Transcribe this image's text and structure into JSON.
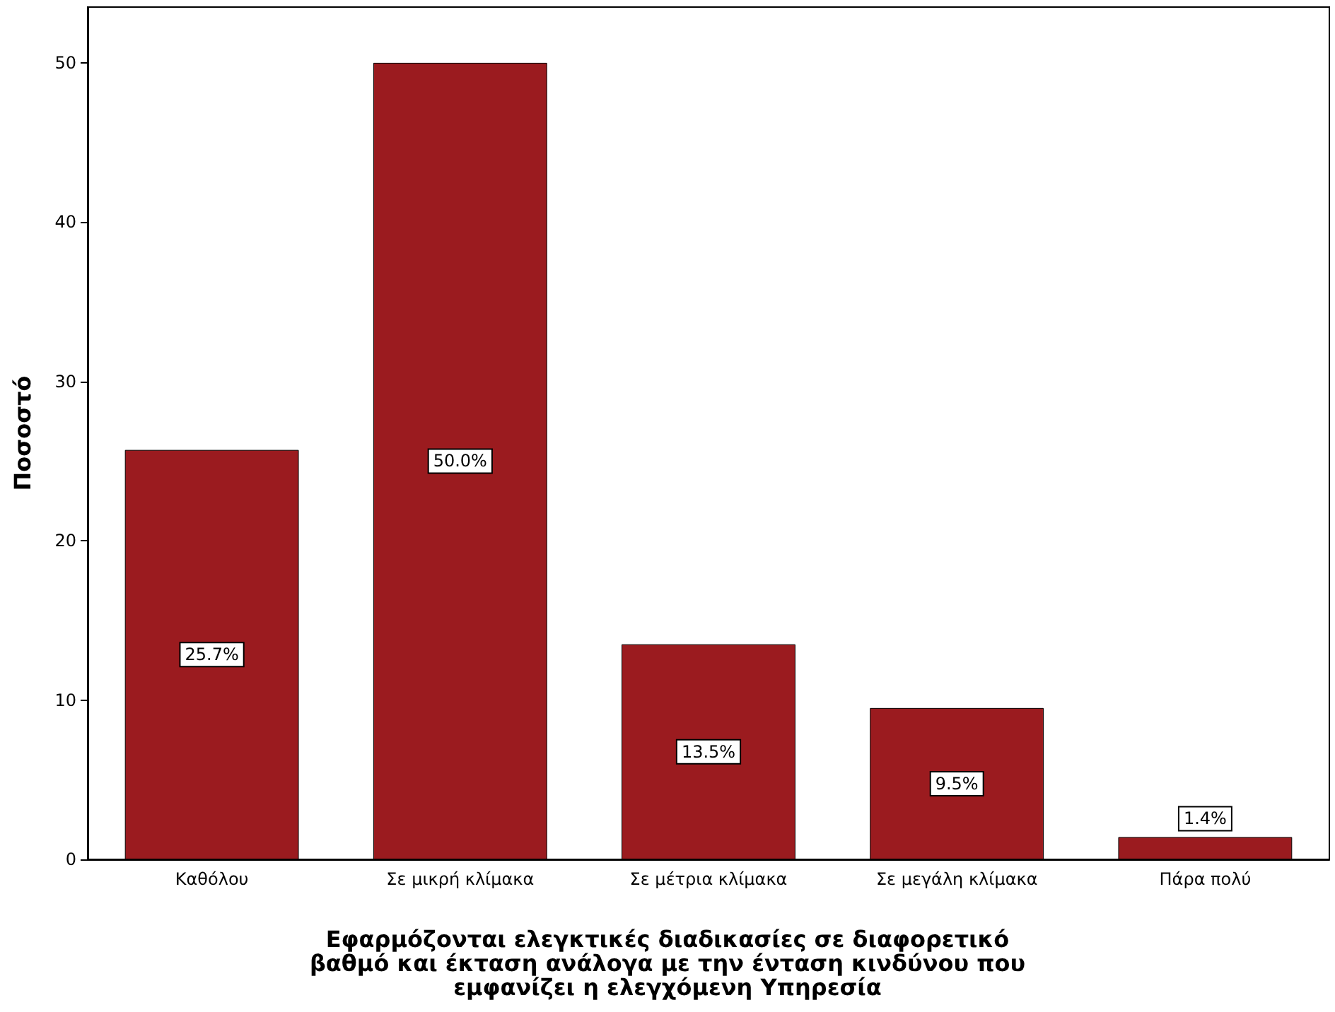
{
  "chart_data": {
    "type": "bar",
    "xlabel": "Εφαρμόζονται ελεγκτικές διαδικασίες σε διαφορετικό βαθμό και έκταση ανάλογα με την ένταση κινδύνου που εμφανίζει η ελεγχόμενη Υπηρεσία",
    "ylabel": "Ποσοστό",
    "categories": [
      "Καθόλου",
      "Σε μικρή κλίμακα",
      "Σε μέτρια κλίμακα",
      "Σε μεγάλη κλίμακα",
      "Πάρα πολύ"
    ],
    "values": [
      25.7,
      50.0,
      13.5,
      9.5,
      1.4
    ],
    "value_labels": [
      "25.7%",
      "50.0%",
      "13.5%",
      "9.5%",
      "1.4%"
    ],
    "color": "#9b1b1f",
    "ylim": [
      0,
      53.5
    ],
    "yticks": [
      0,
      10,
      20,
      30,
      40,
      50
    ],
    "grid": false
  }
}
